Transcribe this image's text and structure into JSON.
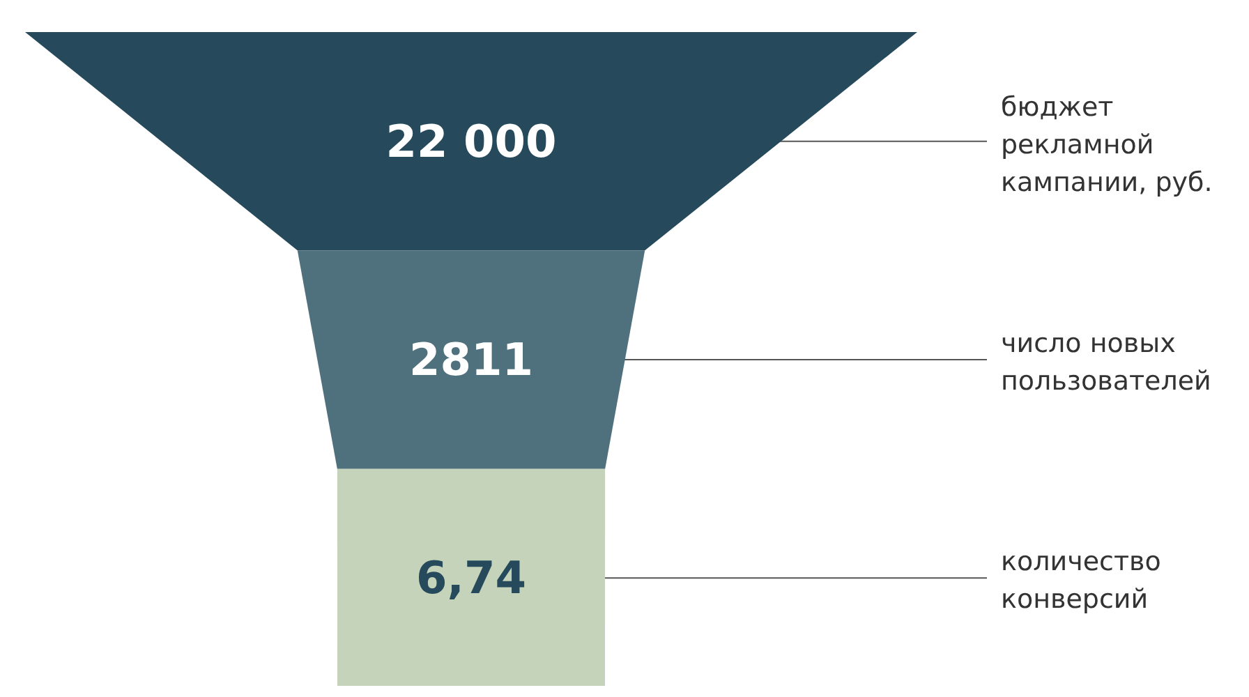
{
  "chart_data": {
    "type": "other",
    "categories": [
      "бюджет рекламной кампании, руб.",
      "число новых пользователей",
      "количество конверсий"
    ],
    "values": [
      22000,
      2811,
      6.74
    ],
    "value_labels": [
      "22 000",
      "2811",
      "6,74"
    ],
    "colors": [
      "#264a5b",
      "#4f707d",
      "#c4d3b9"
    ]
  }
}
